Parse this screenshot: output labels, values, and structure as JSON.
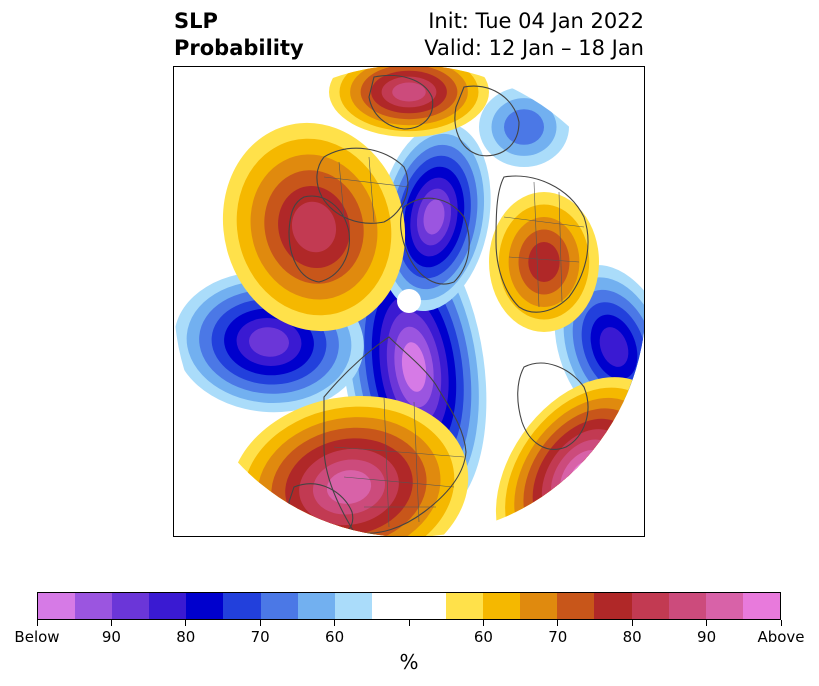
{
  "title": {
    "left_line1": "SLP",
    "left_line2": "Probability",
    "right_line1": "Init: Tue 04 Jan 2022",
    "right_line2": "Valid: 12 Jan – 18 Jan"
  },
  "map": {
    "projection": "north-polar-stereographic",
    "below_colors": [
      "#d67ae6",
      "#9b55e0",
      "#6b36d8",
      "#3a1ad2",
      "#0000cd",
      "#2240dc",
      "#4b78e6",
      "#72b0f0",
      "#aadcfa"
    ],
    "neutral_color": "#ffffff",
    "above_colors": [
      "#ffe14a",
      "#f5b800",
      "#e08a0e",
      "#c8561a",
      "#b02828",
      "#c23a52",
      "#cc4b7c",
      "#d862a8",
      "#e87adc"
    ]
  },
  "colorbar": {
    "colors": [
      "#d67ae6",
      "#9b55e0",
      "#6b36d8",
      "#3a1ad2",
      "#0000cd",
      "#2240dc",
      "#4b78e6",
      "#72b0f0",
      "#aadcfa",
      "#ffffff",
      "#ffffff",
      "#ffe14a",
      "#f5b800",
      "#e08a0e",
      "#c8561a",
      "#b02828",
      "#c23a52",
      "#cc4b7c",
      "#d862a8",
      "#e87adc"
    ],
    "ticks": [
      "Below",
      "90",
      "80",
      "70",
      "60",
      "",
      "60",
      "70",
      "80",
      "90",
      "Above"
    ],
    "unit": "%"
  }
}
